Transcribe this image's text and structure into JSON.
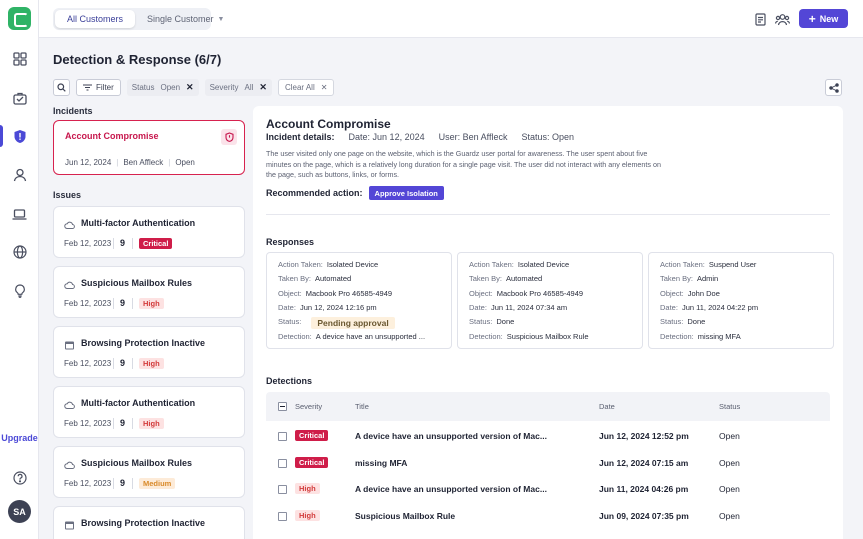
{
  "topbar": {
    "tabs": [
      {
        "label": "All Customers",
        "active": true
      },
      {
        "label": "Single Customer",
        "active": false
      }
    ],
    "new_button": "New",
    "new_icon": "plus-icon",
    "icons": [
      "document-icon",
      "users-icon"
    ]
  },
  "sidebar": {
    "items": [
      {
        "name": "dashboard-icon"
      },
      {
        "name": "briefcase-icon"
      },
      {
        "name": "shield-icon",
        "active": true
      },
      {
        "name": "user-icon"
      },
      {
        "name": "laptop-icon"
      },
      {
        "name": "globe-icon"
      },
      {
        "name": "lightbulb-icon"
      }
    ],
    "upgrade_label": "Upgrade",
    "help_icon": "help-icon",
    "avatar_initials": "SA"
  },
  "page": {
    "title": "Detection & Response (6/7)"
  },
  "filters": {
    "filter_label": "Filter",
    "status_label": "Status",
    "status_value": "Open",
    "severity_label": "Severity",
    "severity_value": "All",
    "clear_label": "Clear All"
  },
  "incidents": {
    "label": "Incidents",
    "items": [
      {
        "title": "Account Compromise",
        "date": "Jun 12, 2024",
        "user": "Ben Affleck",
        "status": "Open"
      }
    ]
  },
  "issues": {
    "label": "Issues",
    "items": [
      {
        "icon": "cloud-icon",
        "title": "Multi-factor Authentication",
        "date": "Feb 12, 2023",
        "count": "9",
        "severity": "Critical"
      },
      {
        "icon": "cloud-icon",
        "title": "Suspicious Mailbox Rules",
        "date": "Feb 12, 2023",
        "count": "9",
        "severity": "High"
      },
      {
        "icon": "browser-icon",
        "title": "Browsing Protection Inactive",
        "date": "Feb 12, 2023",
        "count": "9",
        "severity": "High"
      },
      {
        "icon": "cloud-icon",
        "title": "Multi-factor Authentication",
        "date": "Feb 12, 2023",
        "count": "9",
        "severity": "High"
      },
      {
        "icon": "cloud-icon",
        "title": "Suspicious Mailbox Rules",
        "date": "Feb 12, 2023",
        "count": "9",
        "severity": "Medium"
      },
      {
        "icon": "browser-icon",
        "title": "Browsing Protection Inactive",
        "date": "",
        "count": "",
        "severity": ""
      }
    ]
  },
  "detail": {
    "title": "Account Compromise",
    "details_label": "Incident details:",
    "date_label": "Date:",
    "date_value": "Jun 12, 2024",
    "user_label": "User:",
    "user_value": "Ben Affleck",
    "status_label": "Status:",
    "status_value": "Open",
    "description": "The user visited only one page on the website, which is the Guardz user portal for awareness. The user spent about five minutes on the page, which is a relatively long duration for a single page visit. The user did not interact with any elements on the page, such as buttons, links, or forms.",
    "recommended_label": "Recommended action:",
    "recommended_button": "Approve Isolation",
    "responses_label": "Responses",
    "responses": [
      {
        "rows": [
          {
            "k": "Action Taken:",
            "v": "Isolated Device"
          },
          {
            "k": "Taken By:",
            "v": "Automated"
          },
          {
            "k": "Object:",
            "v": "Macbook Pro 46585-4949"
          },
          {
            "k": "Date:",
            "v": "Jun 12, 2024 12:16 pm"
          },
          {
            "k": "Status:",
            "v": "Pending approval"
          },
          {
            "k": "Detection:",
            "v": "A device have an unsupported ..."
          }
        ]
      },
      {
        "rows": [
          {
            "k": "Action Taken:",
            "v": "Isolated Device"
          },
          {
            "k": "Taken By:",
            "v": "Automated"
          },
          {
            "k": "Object:",
            "v": "Macbook Pro 46585-4949"
          },
          {
            "k": "Date:",
            "v": "Jun 11, 2024 07:34 am"
          },
          {
            "k": "Status:",
            "v": "Done"
          },
          {
            "k": "Detection:",
            "v": "Suspicious Mailbox Rule"
          }
        ]
      },
      {
        "rows": [
          {
            "k": "Action Taken:",
            "v": "Suspend User"
          },
          {
            "k": "Taken By:",
            "v": "Admin"
          },
          {
            "k": "Object:",
            "v": "John Doe"
          },
          {
            "k": "Date:",
            "v": "Jun 11, 2024 04:22 pm"
          },
          {
            "k": "Status:",
            "v": "Done"
          },
          {
            "k": "Detection:",
            "v": "missing MFA"
          }
        ]
      }
    ],
    "detections_label": "Detections",
    "detections_columns": [
      "Severity",
      "Title",
      "Date",
      "Status"
    ],
    "detections": [
      {
        "severity": "Critical",
        "title": "A device have an unsupported version of Mac...",
        "date": "Jun 12, 2024 12:52 pm",
        "status": "Open"
      },
      {
        "severity": "Critical",
        "title": "missing MFA",
        "date": "Jun 12, 2024 07:15 am",
        "status": "Open"
      },
      {
        "severity": "High",
        "title": "A device have an unsupported version of Mac...",
        "date": "Jun 11, 2024 04:26 pm",
        "status": "Open"
      },
      {
        "severity": "High",
        "title": "Suspicious Mailbox Rule",
        "date": "Jun 09, 2024 07:35 pm",
        "status": "Open"
      }
    ]
  },
  "colors": {
    "accent": "#5346d6",
    "critical": "#cf1d49",
    "high_bg": "#fde2e2",
    "medium_bg": "#fdebd8"
  }
}
